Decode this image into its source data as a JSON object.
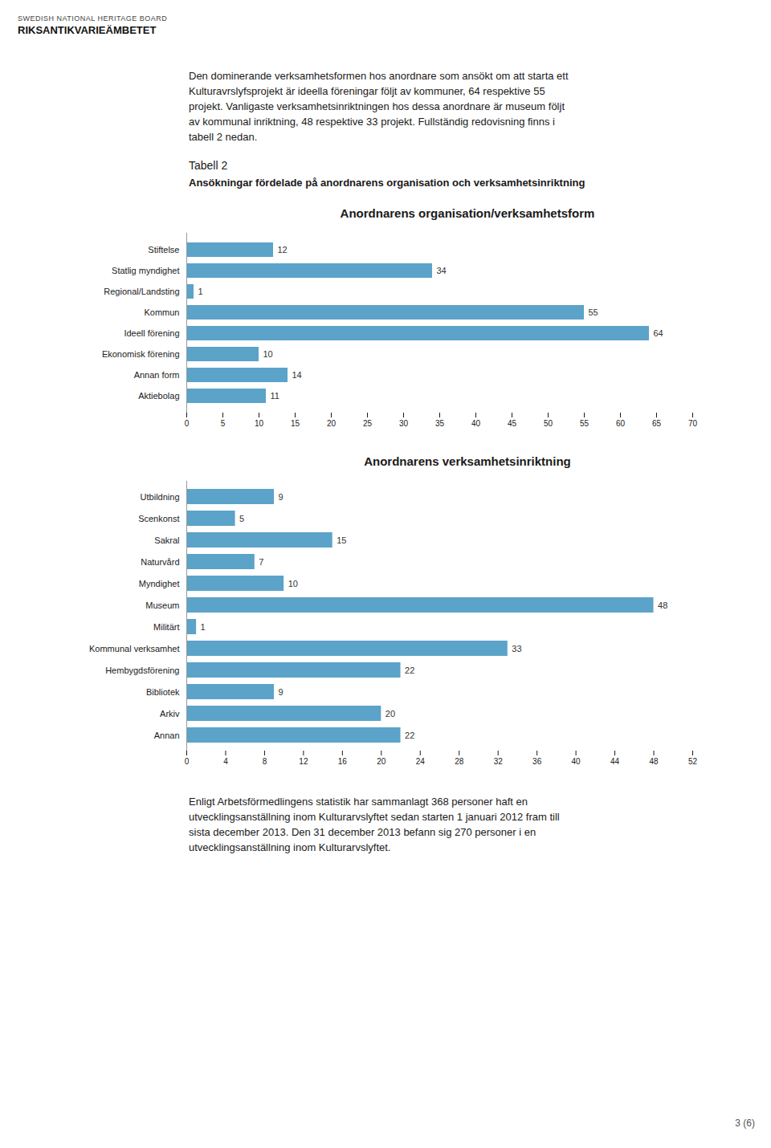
{
  "title": "Tabell 2",
  "subtitle": "Ansökningar fördelade på anordnarens organisation och verksamhetsinriktning",
  "annotations": [
    [
      "SWEDISH NATIONAL HERITAGE BOARD",
      "RIKSANTIKVARIEÄMBETET"
    ],
    [
      "Den dominerande verksamhetsformen hos anordnare som ansökt om att starta ett",
      "Kulturavrslyfsprojekt är ideella föreningar följt av kommuner, 64 respektive 55",
      "projekt. Vanligaste verksamhetsinriktningen hos dessa anordnare är museum följt",
      "av kommunal inriktning, 48 respektive 33 projekt. Fullständig redovisning finns i",
      "tabell 2 nedan."
    ],
    [
      "Enligt Arbetsförmedlingens statistik har sammanlagt 368 personer haft en",
      "utvecklingsanställning inom Kulturarvslyftet sedan starten 1 januari 2012 fram till",
      "sista december 2013. Den 31 december 2013 befann sig 270 personer i en",
      "utvecklingsanställning inom Kulturarvslyftet."
    ],
    [
      "3 (6)"
    ]
  ],
  "chart_data": [
    {
      "type": "bar",
      "orientation": "horizontal",
      "title": "Anordnarens organisation/verksamhetsform",
      "categories": [
        "Stiftelse",
        "Statlig myndighet",
        "Regional/Landsting",
        "Kommun",
        "Ideell förening",
        "Ekonomisk förening",
        "Annan form",
        "Aktiebolag"
      ],
      "values": [
        12,
        34,
        1,
        55,
        64,
        10,
        14,
        11
      ],
      "color": "#5BA3C9",
      "xlim": [
        0,
        70
      ],
      "xticks": [
        0,
        5,
        10,
        15,
        20,
        25,
        30,
        35,
        40,
        45,
        50,
        55,
        60,
        65,
        70
      ],
      "data_labels": true,
      "grid": false
    },
    {
      "type": "bar",
      "orientation": "horizontal",
      "title": "Anordnarens verksamhetsinriktning",
      "categories": [
        "Utbildning",
        "Scenkonst",
        "Sakral",
        "Naturvård",
        "Myndighet",
        "Museum",
        "Militärt",
        "Kommunal verksamhet",
        "Hembygdsförening",
        "Bibliotek",
        "Arkiv",
        "Annan"
      ],
      "values": [
        9,
        5,
        15,
        7,
        10,
        48,
        1,
        33,
        22,
        9,
        20,
        22
      ],
      "color": "#5BA3C9",
      "xlim": [
        0,
        52
      ],
      "xticks": [
        0,
        4,
        8,
        12,
        16,
        20,
        24,
        28,
        32,
        36,
        40,
        44,
        48,
        52
      ],
      "data_labels": true,
      "grid": false
    }
  ]
}
